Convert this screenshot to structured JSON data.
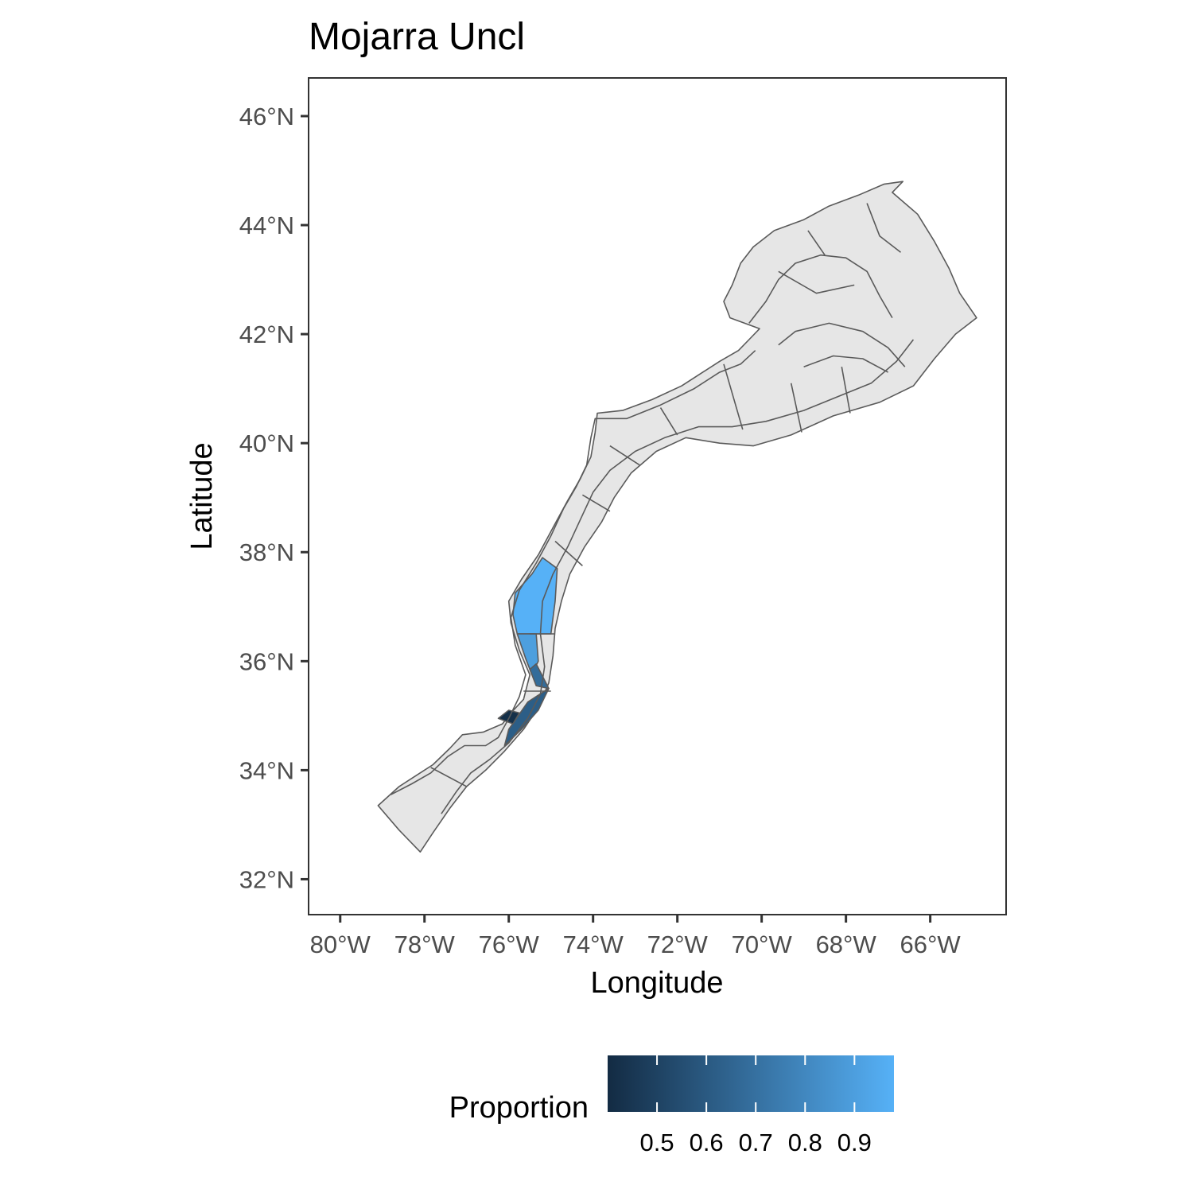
{
  "chart_data": {
    "type": "map",
    "title": "Mojarra Uncl",
    "xlabel": "Longitude",
    "ylabel": "Latitude",
    "x_ticks": [
      {
        "value": -80,
        "label": "80°W"
      },
      {
        "value": -78,
        "label": "78°W"
      },
      {
        "value": -76,
        "label": "76°W"
      },
      {
        "value": -74,
        "label": "74°W"
      },
      {
        "value": -72,
        "label": "72°W"
      },
      {
        "value": -70,
        "label": "70°W"
      },
      {
        "value": -68,
        "label": "68°W"
      },
      {
        "value": -66,
        "label": "66°W"
      }
    ],
    "y_ticks": [
      {
        "value": 32,
        "label": "32°N"
      },
      {
        "value": 34,
        "label": "34°N"
      },
      {
        "value": 36,
        "label": "36°N"
      },
      {
        "value": 38,
        "label": "38°N"
      },
      {
        "value": 40,
        "label": "40°N"
      },
      {
        "value": 42,
        "label": "42°N"
      },
      {
        "value": 44,
        "label": "44°N"
      },
      {
        "value": 46,
        "label": "46°N"
      }
    ],
    "xlim": [
      -80.75,
      -64.2
    ],
    "ylim": [
      31.35,
      46.7
    ],
    "grid": false,
    "no_data_fill": "#e6e6e6",
    "region_stroke": "#5a5a5a",
    "colorbar": {
      "title": "Proportion",
      "position": "bottom",
      "low_color": "#132b43",
      "high_color": "#56b1f7",
      "range": [
        0.4,
        0.98
      ],
      "ticks": [
        {
          "value": 0.5,
          "label": "0.5"
        },
        {
          "value": 0.6,
          "label": "0.6"
        },
        {
          "value": 0.7,
          "label": "0.7"
        },
        {
          "value": 0.8,
          "label": "0.8"
        },
        {
          "value": 0.9,
          "label": "0.9"
        }
      ]
    },
    "base_polygons": [
      {
        "name": "shelf-outline",
        "coords": [
          [
            -79.1,
            33.35
          ],
          [
            -78.6,
            33.7
          ],
          [
            -78.2,
            33.9
          ],
          [
            -77.8,
            34.1
          ],
          [
            -77.4,
            34.4
          ],
          [
            -77.1,
            34.65
          ],
          [
            -76.6,
            34.7
          ],
          [
            -76.15,
            34.85
          ],
          [
            -75.95,
            35.05
          ],
          [
            -75.65,
            35.3
          ],
          [
            -75.5,
            35.75
          ],
          [
            -75.75,
            36.2
          ],
          [
            -75.95,
            36.7
          ],
          [
            -76.0,
            37.1
          ],
          [
            -75.7,
            37.5
          ],
          [
            -75.3,
            37.95
          ],
          [
            -74.95,
            38.45
          ],
          [
            -74.6,
            38.95
          ],
          [
            -74.3,
            39.35
          ],
          [
            -74.05,
            39.75
          ],
          [
            -73.95,
            40.2
          ],
          [
            -73.9,
            40.55
          ],
          [
            -73.3,
            40.6
          ],
          [
            -72.6,
            40.8
          ],
          [
            -71.9,
            41.05
          ],
          [
            -71.4,
            41.3
          ],
          [
            -71.0,
            41.5
          ],
          [
            -70.55,
            41.7
          ],
          [
            -70.3,
            41.9
          ],
          [
            -70.05,
            42.1
          ],
          [
            -70.75,
            42.3
          ],
          [
            -70.9,
            42.6
          ],
          [
            -70.7,
            42.9
          ],
          [
            -70.5,
            43.3
          ],
          [
            -70.2,
            43.6
          ],
          [
            -69.7,
            43.9
          ],
          [
            -69.0,
            44.1
          ],
          [
            -68.4,
            44.35
          ],
          [
            -67.7,
            44.55
          ],
          [
            -67.1,
            44.75
          ],
          [
            -66.65,
            44.8
          ],
          [
            -66.9,
            44.6
          ],
          [
            -66.3,
            44.2
          ],
          [
            -65.9,
            43.7
          ],
          [
            -65.55,
            43.2
          ],
          [
            -65.3,
            42.75
          ],
          [
            -64.9,
            42.3
          ],
          [
            -65.4,
            42.0
          ],
          [
            -65.9,
            41.55
          ],
          [
            -66.4,
            41.05
          ],
          [
            -67.2,
            40.75
          ],
          [
            -68.3,
            40.5
          ],
          [
            -69.3,
            40.15
          ],
          [
            -70.2,
            39.95
          ],
          [
            -71.0,
            40.0
          ],
          [
            -71.8,
            40.1
          ],
          [
            -72.5,
            39.85
          ],
          [
            -73.1,
            39.45
          ],
          [
            -73.5,
            39.0
          ],
          [
            -73.8,
            38.55
          ],
          [
            -74.2,
            38.1
          ],
          [
            -74.55,
            37.6
          ],
          [
            -74.75,
            37.1
          ],
          [
            -74.9,
            36.6
          ],
          [
            -74.95,
            36.1
          ],
          [
            -75.05,
            35.6
          ],
          [
            -75.3,
            35.15
          ],
          [
            -75.65,
            34.75
          ],
          [
            -76.1,
            34.35
          ],
          [
            -76.55,
            34.0
          ],
          [
            -77.0,
            33.7
          ],
          [
            -77.4,
            33.3
          ],
          [
            -77.8,
            32.85
          ],
          [
            -78.1,
            32.5
          ],
          [
            -78.6,
            32.9
          ],
          [
            -79.1,
            33.35
          ]
        ]
      }
    ],
    "inner_lines": [
      {
        "name": "inshore-contour",
        "coords": [
          [
            -78.8,
            33.55
          ],
          [
            -78.3,
            33.75
          ],
          [
            -77.85,
            33.95
          ],
          [
            -77.45,
            34.25
          ],
          [
            -77.05,
            34.45
          ],
          [
            -76.55,
            34.45
          ],
          [
            -76.25,
            34.6
          ],
          [
            -76.0,
            34.95
          ],
          [
            -75.75,
            35.35
          ],
          [
            -75.6,
            35.75
          ],
          [
            -75.85,
            36.3
          ],
          [
            -75.95,
            36.8
          ],
          [
            -75.75,
            37.3
          ],
          [
            -75.35,
            37.8
          ],
          [
            -75.0,
            38.3
          ],
          [
            -74.7,
            38.8
          ],
          [
            -74.4,
            39.2
          ],
          [
            -74.15,
            39.6
          ],
          [
            -74.05,
            40.1
          ],
          [
            -73.95,
            40.45
          ],
          [
            -73.2,
            40.45
          ],
          [
            -72.4,
            40.7
          ],
          [
            -71.6,
            41.0
          ],
          [
            -71.0,
            41.3
          ],
          [
            -70.5,
            41.45
          ],
          [
            -70.15,
            41.7
          ]
        ]
      },
      {
        "name": "mid-shelf-contour",
        "coords": [
          [
            -77.6,
            33.2
          ],
          [
            -77.25,
            33.6
          ],
          [
            -76.9,
            33.95
          ],
          [
            -76.45,
            34.2
          ],
          [
            -76.0,
            34.5
          ],
          [
            -75.55,
            34.95
          ],
          [
            -75.25,
            35.4
          ],
          [
            -75.15,
            35.9
          ],
          [
            -75.25,
            36.5
          ],
          [
            -75.2,
            37.1
          ],
          [
            -74.95,
            37.6
          ],
          [
            -74.6,
            38.1
          ],
          [
            -74.3,
            38.6
          ],
          [
            -74.0,
            39.1
          ],
          [
            -73.6,
            39.5
          ],
          [
            -73.0,
            39.85
          ],
          [
            -72.3,
            40.1
          ],
          [
            -71.5,
            40.3
          ],
          [
            -70.7,
            40.3
          ],
          [
            -69.9,
            40.4
          ],
          [
            -69.0,
            40.6
          ],
          [
            -68.2,
            40.85
          ],
          [
            -67.4,
            41.1
          ],
          [
            -66.8,
            41.5
          ],
          [
            -66.4,
            41.9
          ]
        ]
      },
      {
        "name": "gom-basin-contour",
        "coords": [
          [
            -70.3,
            42.2
          ],
          [
            -69.9,
            42.6
          ],
          [
            -69.6,
            43.0
          ],
          [
            -69.2,
            43.3
          ],
          [
            -68.6,
            43.45
          ],
          [
            -68.0,
            43.4
          ],
          [
            -67.5,
            43.15
          ],
          [
            -67.2,
            42.7
          ],
          [
            -66.9,
            42.3
          ]
        ]
      },
      {
        "name": "gom-ledge-contour",
        "coords": [
          [
            -69.6,
            41.8
          ],
          [
            -69.2,
            42.05
          ],
          [
            -68.4,
            42.2
          ],
          [
            -67.6,
            42.05
          ],
          [
            -67.0,
            41.75
          ],
          [
            -66.6,
            41.4
          ]
        ]
      },
      {
        "name": "george-bank-line",
        "coords": [
          [
            -69.0,
            41.4
          ],
          [
            -68.3,
            41.6
          ],
          [
            -67.6,
            41.55
          ],
          [
            -67.0,
            41.3
          ]
        ]
      },
      {
        "name": "stratum-line-1",
        "coords": [
          [
            -72.4,
            40.65
          ],
          [
            -72.0,
            40.15
          ]
        ]
      },
      {
        "name": "stratum-line-2",
        "coords": [
          [
            -73.6,
            39.95
          ],
          [
            -72.9,
            39.6
          ]
        ]
      },
      {
        "name": "stratum-line-3",
        "coords": [
          [
            -74.25,
            39.05
          ],
          [
            -73.6,
            38.75
          ]
        ]
      },
      {
        "name": "stratum-line-4",
        "coords": [
          [
            -74.9,
            38.2
          ],
          [
            -74.25,
            37.75
          ]
        ]
      },
      {
        "name": "stratum-line-5",
        "coords": [
          [
            -70.9,
            41.45
          ],
          [
            -70.45,
            40.25
          ]
        ]
      },
      {
        "name": "stratum-line-6",
        "coords": [
          [
            -69.3,
            41.1
          ],
          [
            -69.05,
            40.2
          ]
        ]
      },
      {
        "name": "stratum-line-7",
        "coords": [
          [
            -68.1,
            41.4
          ],
          [
            -67.9,
            40.55
          ]
        ]
      },
      {
        "name": "stratum-line-8",
        "coords": [
          [
            -69.6,
            43.15
          ],
          [
            -68.7,
            42.75
          ],
          [
            -67.8,
            42.9
          ]
        ]
      },
      {
        "name": "stratum-line-9",
        "coords": [
          [
            -68.9,
            43.9
          ],
          [
            -68.5,
            43.45
          ]
        ]
      },
      {
        "name": "stratum-line-10",
        "coords": [
          [
            -67.5,
            44.4
          ],
          [
            -67.2,
            43.8
          ],
          [
            -66.7,
            43.5
          ]
        ]
      },
      {
        "name": "stratum-line-11",
        "coords": [
          [
            -77.0,
            33.7
          ],
          [
            -77.85,
            34.05
          ]
        ]
      },
      {
        "name": "stratum-line-12",
        "coords": [
          [
            -75.5,
            36.5
          ],
          [
            -74.9,
            36.5
          ]
        ]
      },
      {
        "name": "stratum-line-13",
        "coords": [
          [
            -75.65,
            35.45
          ],
          [
            -75.0,
            35.45
          ]
        ]
      }
    ],
    "filled_strata": [
      {
        "name": "stratum-37",
        "value": 0.98,
        "coords": [
          [
            -75.85,
            37.25
          ],
          [
            -75.45,
            37.6
          ],
          [
            -75.2,
            37.9
          ],
          [
            -74.85,
            37.7
          ],
          [
            -74.9,
            37.1
          ],
          [
            -75.0,
            36.5
          ],
          [
            -75.8,
            36.5
          ],
          [
            -75.9,
            36.85
          ],
          [
            -75.85,
            37.25
          ]
        ]
      },
      {
        "name": "stratum-36",
        "value": 0.9,
        "coords": [
          [
            -75.8,
            36.5
          ],
          [
            -75.6,
            36.05
          ],
          [
            -75.45,
            35.75
          ],
          [
            -75.3,
            36.0
          ],
          [
            -75.35,
            36.5
          ],
          [
            -75.8,
            36.5
          ]
        ]
      },
      {
        "name": "stratum-35",
        "value": 0.68,
        "coords": [
          [
            -75.5,
            35.85
          ],
          [
            -75.35,
            35.55
          ],
          [
            -75.05,
            35.5
          ],
          [
            -75.35,
            35.95
          ],
          [
            -75.5,
            35.85
          ]
        ]
      },
      {
        "name": "stratum-34",
        "value": 0.62,
        "coords": [
          [
            -76.0,
            34.75
          ],
          [
            -75.55,
            35.25
          ],
          [
            -75.05,
            35.5
          ],
          [
            -75.3,
            35.1
          ],
          [
            -75.7,
            34.75
          ],
          [
            -76.1,
            34.45
          ],
          [
            -76.0,
            34.75
          ]
        ]
      },
      {
        "name": "stratum-34b",
        "value": 0.42,
        "coords": [
          [
            -76.25,
            34.95
          ],
          [
            -76.0,
            35.1
          ],
          [
            -75.75,
            35.05
          ],
          [
            -75.9,
            34.85
          ],
          [
            -76.25,
            34.95
          ]
        ]
      }
    ]
  }
}
